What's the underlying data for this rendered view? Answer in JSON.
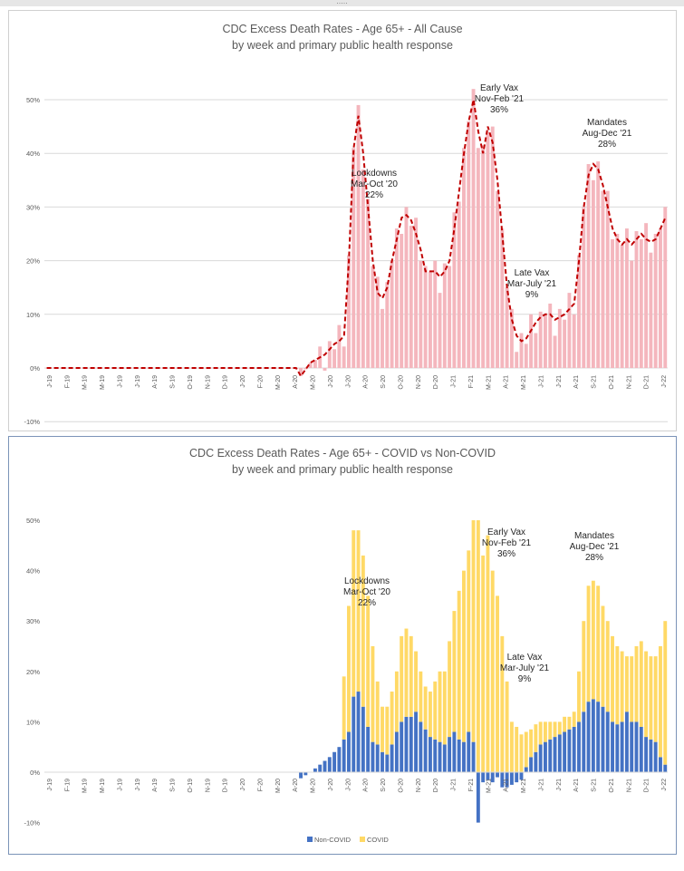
{
  "chart_data": [
    {
      "type": "bar",
      "title": "CDC Excess Death Rates - Age 65+ - All Cause",
      "subtitle": "by week and primary public health response",
      "ylim": [
        -0.1,
        0.5
      ],
      "y_ticks": [
        "-10%",
        "0%",
        "10%",
        "20%",
        "30%",
        "40%",
        "50%"
      ],
      "x_ticks": [
        "J-19",
        "F-19",
        "M-19",
        "M-19",
        "J-19",
        "J-19",
        "A-19",
        "S-19",
        "O-19",
        "N-19",
        "D-19",
        "J-20",
        "F-20",
        "M-20",
        "A-20",
        "M-20",
        "J-20",
        "J-20",
        "A-20",
        "S-20",
        "O-20",
        "N-20",
        "D-20",
        "J-21",
        "F-21",
        "M-21",
        "A-21",
        "M-21",
        "J-21",
        "J-21",
        "A-21",
        "S-21",
        "O-21",
        "N-21",
        "D-21",
        "J-22"
      ],
      "grid": true,
      "colors": {
        "bars": "#f4b6bd",
        "trend": "#c00000"
      },
      "week_keys": [
        [
          0,
          0.0
        ],
        [
          52,
          0.0
        ],
        [
          53,
          -0.015
        ],
        [
          55,
          0.01
        ],
        [
          57,
          0.02
        ],
        [
          58,
          0.025
        ],
        [
          60,
          0.045
        ],
        [
          61,
          0.05
        ],
        [
          62,
          0.06
        ],
        [
          63,
          0.2
        ],
        [
          64,
          0.41
        ],
        [
          65,
          0.47
        ],
        [
          66,
          0.4
        ],
        [
          67,
          0.3
        ],
        [
          68,
          0.2
        ],
        [
          69,
          0.14
        ],
        [
          70,
          0.13
        ],
        [
          71,
          0.15
        ],
        [
          72,
          0.2
        ],
        [
          73,
          0.24
        ],
        [
          74,
          0.28
        ],
        [
          75,
          0.285
        ],
        [
          76,
          0.275
        ],
        [
          77,
          0.25
        ],
        [
          78,
          0.22
        ],
        [
          79,
          0.18
        ],
        [
          80,
          0.18
        ],
        [
          81,
          0.18
        ],
        [
          82,
          0.17
        ],
        [
          83,
          0.18
        ],
        [
          84,
          0.2
        ],
        [
          85,
          0.26
        ],
        [
          86,
          0.33
        ],
        [
          87,
          0.4
        ],
        [
          88,
          0.46
        ],
        [
          89,
          0.5
        ],
        [
          90,
          0.44
        ],
        [
          91,
          0.4
        ],
        [
          92,
          0.45
        ],
        [
          93,
          0.42
        ],
        [
          94,
          0.35
        ],
        [
          95,
          0.25
        ],
        [
          96,
          0.15
        ],
        [
          97,
          0.09
        ],
        [
          98,
          0.06
        ],
        [
          99,
          0.05
        ],
        [
          100,
          0.055
        ],
        [
          101,
          0.07
        ],
        [
          102,
          0.085
        ],
        [
          103,
          0.095
        ],
        [
          104,
          0.1
        ],
        [
          105,
          0.1
        ],
        [
          106,
          0.09
        ],
        [
          107,
          0.095
        ],
        [
          108,
          0.1
        ],
        [
          109,
          0.11
        ],
        [
          110,
          0.12
        ],
        [
          111,
          0.2
        ],
        [
          112,
          0.3
        ],
        [
          113,
          0.36
        ],
        [
          114,
          0.38
        ],
        [
          115,
          0.37
        ],
        [
          116,
          0.34
        ],
        [
          117,
          0.3
        ],
        [
          118,
          0.26
        ],
        [
          119,
          0.24
        ],
        [
          120,
          0.23
        ],
        [
          121,
          0.24
        ],
        [
          122,
          0.23
        ],
        [
          123,
          0.24
        ],
        [
          124,
          0.25
        ],
        [
          125,
          0.24
        ],
        [
          126,
          0.235
        ],
        [
          127,
          0.24
        ],
        [
          128,
          0.26
        ],
        [
          129,
          0.28
        ]
      ],
      "bar_noise": [
        0.0,
        0.02,
        -0.03,
        0.015,
        -0.01,
        0.03,
        -0.02,
        0.01
      ],
      "annotations": [
        {
          "lines": [
            "Lockdowns",
            "Mar-Oct '20",
            "22%"
          ]
        },
        {
          "lines": [
            "Early Vax",
            "Nov-Feb '21",
            "36%"
          ]
        },
        {
          "lines": [
            "Late Vax",
            "Mar-July '21",
            "9%"
          ]
        },
        {
          "lines": [
            "Mandates",
            "Aug-Dec '21",
            "28%"
          ]
        }
      ]
    },
    {
      "type": "bar",
      "stacked": true,
      "title": "CDC Excess Death Rates - Age 65+ - COVID vs Non-COVID",
      "subtitle": "by week and primary public health response",
      "ylim": [
        -0.1,
        0.5
      ],
      "y_ticks": [
        "-10%",
        "0%",
        "10%",
        "20%",
        "30%",
        "40%",
        "50%"
      ],
      "x_ticks": [
        "J-19",
        "F-19",
        "M-19",
        "M-19",
        "J-19",
        "J-19",
        "A-19",
        "S-19",
        "O-19",
        "N-19",
        "D-19",
        "J-20",
        "F-20",
        "M-20",
        "A-20",
        "M-20",
        "J-20",
        "J-20",
        "A-20",
        "S-20",
        "O-20",
        "N-20",
        "D-20",
        "J-21",
        "F-21",
        "M-21",
        "A-21",
        "M-21",
        "J-21",
        "J-21",
        "A-21",
        "S-21",
        "O-21",
        "N-21",
        "D-21",
        "J-22"
      ],
      "grid": false,
      "series": [
        {
          "name": "Non-COVID",
          "color": "#4472c4",
          "keys": [
            [
              0,
              0.0
            ],
            [
              52,
              0.0
            ],
            [
              53,
              -0.012
            ],
            [
              55,
              0.0
            ],
            [
              57,
              0.015
            ],
            [
              59,
              0.03
            ],
            [
              61,
              0.05
            ],
            [
              63,
              0.08
            ],
            [
              64,
              0.15
            ],
            [
              65,
              0.16
            ],
            [
              66,
              0.13
            ],
            [
              67,
              0.09
            ],
            [
              68,
              0.06
            ],
            [
              69,
              0.055
            ],
            [
              70,
              0.04
            ],
            [
              71,
              0.035
            ],
            [
              72,
              0.055
            ],
            [
              73,
              0.08
            ],
            [
              74,
              0.1
            ],
            [
              75,
              0.11
            ],
            [
              76,
              0.11
            ],
            [
              77,
              0.12
            ],
            [
              78,
              0.1
            ],
            [
              79,
              0.085
            ],
            [
              80,
              0.07
            ],
            [
              81,
              0.065
            ],
            [
              82,
              0.06
            ],
            [
              83,
              0.055
            ],
            [
              84,
              0.07
            ],
            [
              85,
              0.08
            ],
            [
              86,
              0.065
            ],
            [
              87,
              0.06
            ],
            [
              88,
              0.08
            ],
            [
              89,
              0.06
            ],
            [
              90,
              -0.1
            ],
            [
              91,
              -0.02
            ],
            [
              92,
              -0.015
            ],
            [
              93,
              -0.02
            ],
            [
              94,
              -0.01
            ],
            [
              95,
              -0.03
            ],
            [
              96,
              -0.03
            ],
            [
              97,
              -0.025
            ],
            [
              98,
              -0.02
            ],
            [
              99,
              -0.015
            ],
            [
              100,
              0.01
            ],
            [
              101,
              0.03
            ],
            [
              102,
              0.04
            ],
            [
              103,
              0.055
            ],
            [
              104,
              0.06
            ],
            [
              105,
              0.065
            ],
            [
              106,
              0.07
            ],
            [
              107,
              0.075
            ],
            [
              108,
              0.08
            ],
            [
              109,
              0.085
            ],
            [
              110,
              0.09
            ],
            [
              111,
              0.1
            ],
            [
              112,
              0.12
            ],
            [
              113,
              0.14
            ],
            [
              114,
              0.145
            ],
            [
              115,
              0.14
            ],
            [
              116,
              0.13
            ],
            [
              117,
              0.12
            ],
            [
              118,
              0.1
            ],
            [
              119,
              0.095
            ],
            [
              120,
              0.1
            ],
            [
              121,
              0.12
            ],
            [
              122,
              0.1
            ],
            [
              123,
              0.1
            ],
            [
              124,
              0.09
            ],
            [
              125,
              0.07
            ],
            [
              126,
              0.065
            ],
            [
              127,
              0.06
            ],
            [
              128,
              0.03
            ],
            [
              129,
              0.015
            ]
          ]
        },
        {
          "name": "COVID",
          "color": "#ffd966",
          "total_keys": [
            [
              0,
              0.0
            ],
            [
              52,
              0.0
            ],
            [
              53,
              -0.012
            ],
            [
              55,
              0.0
            ],
            [
              57,
              0.015
            ],
            [
              59,
              0.03
            ],
            [
              61,
              0.05
            ],
            [
              63,
              0.33
            ],
            [
              64,
              0.48
            ],
            [
              65,
              0.48
            ],
            [
              66,
              0.43
            ],
            [
              67,
              0.35
            ],
            [
              68,
              0.25
            ],
            [
              69,
              0.18
            ],
            [
              70,
              0.13
            ],
            [
              71,
              0.13
            ],
            [
              72,
              0.16
            ],
            [
              73,
              0.2
            ],
            [
              74,
              0.27
            ],
            [
              75,
              0.285
            ],
            [
              76,
              0.27
            ],
            [
              77,
              0.24
            ],
            [
              78,
              0.2
            ],
            [
              79,
              0.17
            ],
            [
              80,
              0.16
            ],
            [
              81,
              0.18
            ],
            [
              82,
              0.2
            ],
            [
              83,
              0.2
            ],
            [
              84,
              0.26
            ],
            [
              85,
              0.32
            ],
            [
              86,
              0.36
            ],
            [
              87,
              0.4
            ],
            [
              88,
              0.44
            ],
            [
              89,
              0.5
            ],
            [
              90,
              0.5
            ],
            [
              91,
              0.43
            ],
            [
              92,
              0.47
            ],
            [
              93,
              0.4
            ],
            [
              94,
              0.35
            ],
            [
              95,
              0.27
            ],
            [
              96,
              0.18
            ],
            [
              97,
              0.1
            ],
            [
              98,
              0.09
            ],
            [
              99,
              0.075
            ],
            [
              100,
              0.08
            ],
            [
              101,
              0.085
            ],
            [
              102,
              0.095
            ],
            [
              103,
              0.1
            ],
            [
              104,
              0.1
            ],
            [
              105,
              0.1
            ],
            [
              106,
              0.1
            ],
            [
              107,
              0.1
            ],
            [
              108,
              0.11
            ],
            [
              109,
              0.11
            ],
            [
              110,
              0.12
            ],
            [
              111,
              0.2
            ],
            [
              112,
              0.3
            ],
            [
              113,
              0.37
            ],
            [
              114,
              0.38
            ],
            [
              115,
              0.37
            ],
            [
              116,
              0.33
            ],
            [
              117,
              0.3
            ],
            [
              118,
              0.27
            ],
            [
              119,
              0.25
            ],
            [
              120,
              0.24
            ],
            [
              121,
              0.23
            ],
            [
              122,
              0.23
            ],
            [
              123,
              0.25
            ],
            [
              124,
              0.26
            ],
            [
              125,
              0.24
            ],
            [
              126,
              0.23
            ],
            [
              127,
              0.23
            ],
            [
              128,
              0.25
            ],
            [
              129,
              0.3
            ]
          ]
        }
      ],
      "annotations": [
        {
          "lines": [
            "Lockdowns",
            "Mar-Oct '20",
            "22%"
          ]
        },
        {
          "lines": [
            "Early Vax",
            "Nov-Feb '21",
            "36%"
          ]
        },
        {
          "lines": [
            "Late Vax",
            "Mar-July '21",
            "9%"
          ]
        },
        {
          "lines": [
            "Mandates",
            "Aug-Dec '21",
            "28%"
          ]
        }
      ],
      "legend": {
        "position": "bottom",
        "items": [
          "Non-COVID",
          "COVID"
        ]
      }
    }
  ]
}
